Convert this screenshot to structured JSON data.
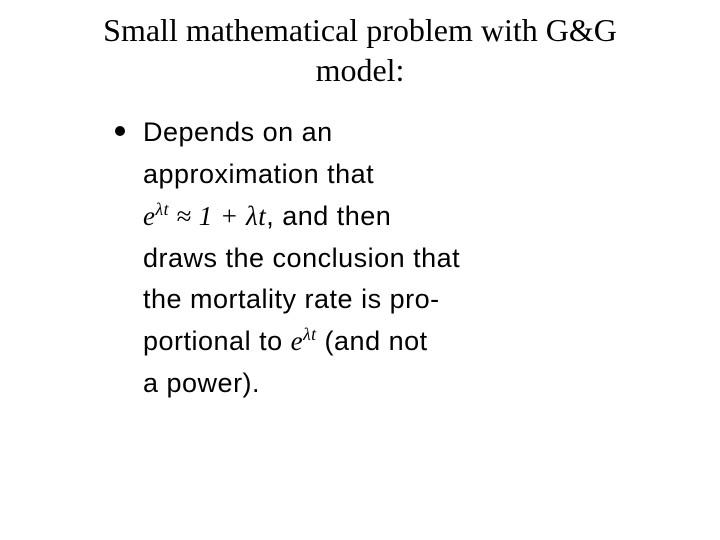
{
  "title_line1": "Small mathematical problem with G&G",
  "title_line2": "model:",
  "body": {
    "p1": "Depends on an",
    "p2": "approximation that",
    "math1_base": "e",
    "math1_exp": "λt",
    "approx": " ≈ ",
    "math1_rhs": "1 + ",
    "math1_lambda_t": "λt",
    "comma_then": ", and then",
    "p3": "draws the conclusion that",
    "p4": "the mortality rate is pro-",
    "p5a": "portional to ",
    "math2_base": "e",
    "math2_exp": "λt",
    "p5b": " (and not",
    "p6": "a power)."
  },
  "colors": {
    "background": "#ffffff",
    "text": "#000000",
    "bullet": "#000000"
  },
  "typography": {
    "title_font": "Times New Roman",
    "title_size_pt": 24,
    "body_font": "Verdana",
    "body_size_pt": 20
  }
}
